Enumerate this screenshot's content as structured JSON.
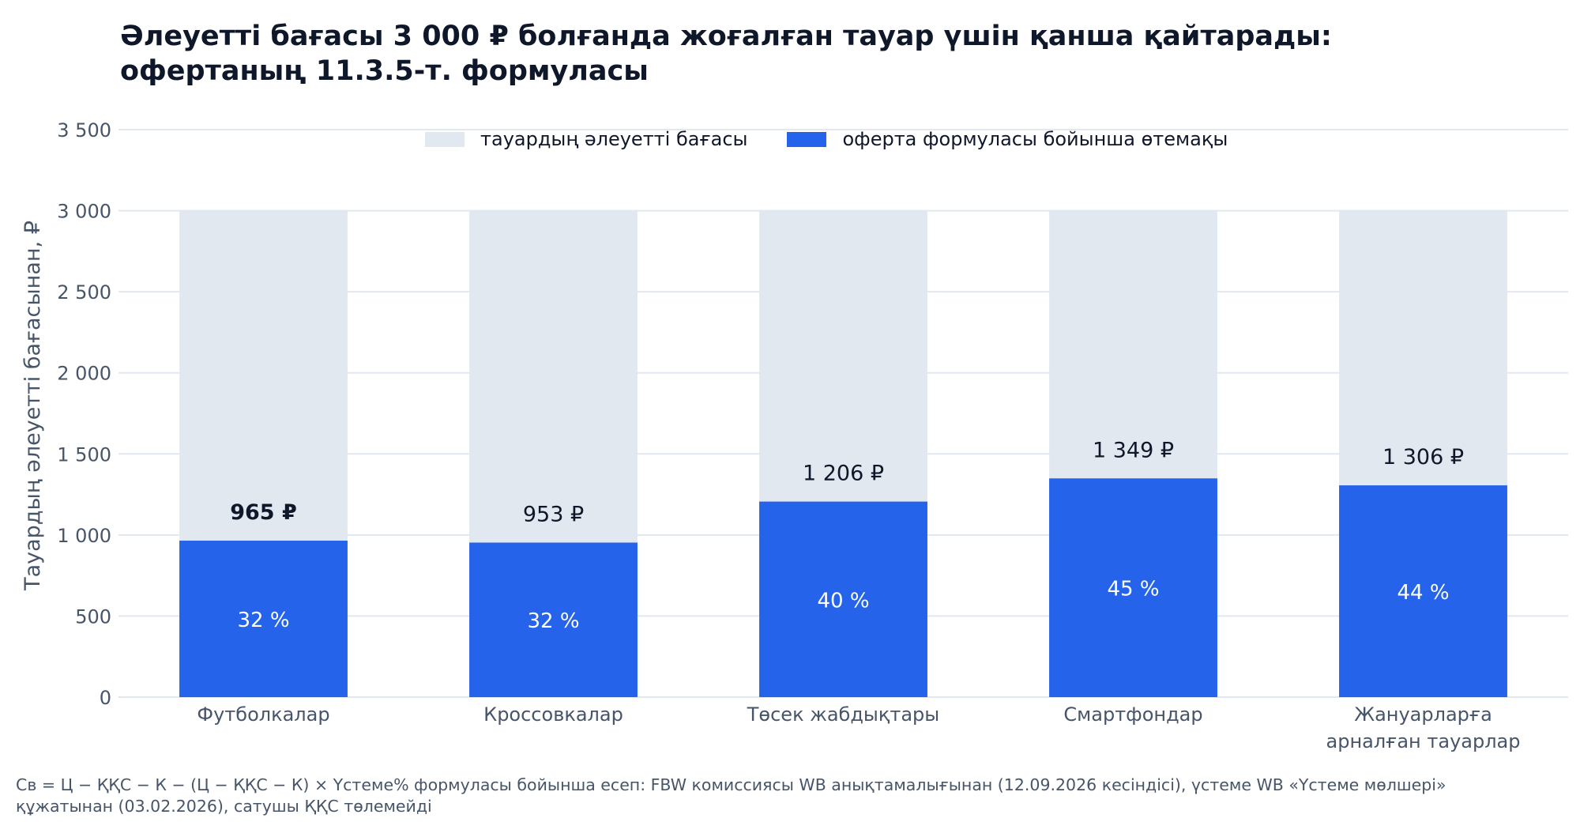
{
  "chart_data": {
    "type": "bar",
    "stacked": "overlay",
    "title": "Әлеуетті бағасы 3 000 ₽ болғанда жоғалған тауар үшін қанша қайтарады: офертаның 11.3.5-т. формуласы",
    "xlabel": "",
    "ylabel": "Тауардың әлеуетті бағасынан, ₽",
    "ylim": [
      0,
      3500
    ],
    "yticks": [
      0,
      500,
      1000,
      1500,
      2000,
      2500,
      3000,
      3500
    ],
    "ytick_labels": [
      "0",
      "500",
      "1 000",
      "1 500",
      "2 000",
      "2 500",
      "3 000",
      "3 500"
    ],
    "grid": true,
    "legend_position": "top-center",
    "categories": [
      "Футболкалар",
      "Кроссовкалар",
      "Төсек жабдықтары",
      "Смартфондар",
      "Жануарларға арналған тауарлар"
    ],
    "category_lines": [
      [
        "Футболкалар"
      ],
      [
        "Кроссовкалар"
      ],
      [
        "Төсек жабдықтары"
      ],
      [
        "Смартфондар"
      ],
      [
        "Жануарларға",
        "арналған тауарлар"
      ]
    ],
    "series": [
      {
        "name": "тауардың әлеуетті бағасы",
        "color": "#e2e8f0",
        "values": [
          3000,
          3000,
          3000,
          3000,
          3000
        ]
      },
      {
        "name": "оферта формуласы бойынша өтемақы",
        "color": "#2563eb",
        "values": [
          965,
          953,
          1206,
          1349,
          1306
        ]
      }
    ],
    "value_labels": [
      "965 ₽",
      "953 ₽",
      "1 206 ₽",
      "1 349 ₽",
      "1 306 ₽"
    ],
    "value_label_bold": [
      true,
      false,
      false,
      false,
      false
    ],
    "percent_labels": [
      "32 %",
      "32 %",
      "40 %",
      "45 %",
      "44 %"
    ],
    "footnote": "Св = Ц − ҚҚС − К − (Ц − ҚҚС − К) × Үстеме% формуласы бойынша есеп: FBW комиссиясы WB анықтамалығынан (12.09.2026 кесіндісі), үстеме WB «Үстеме мөлшері» құжатынан (03.02.2026), сатушы ҚҚС төлемейді"
  }
}
